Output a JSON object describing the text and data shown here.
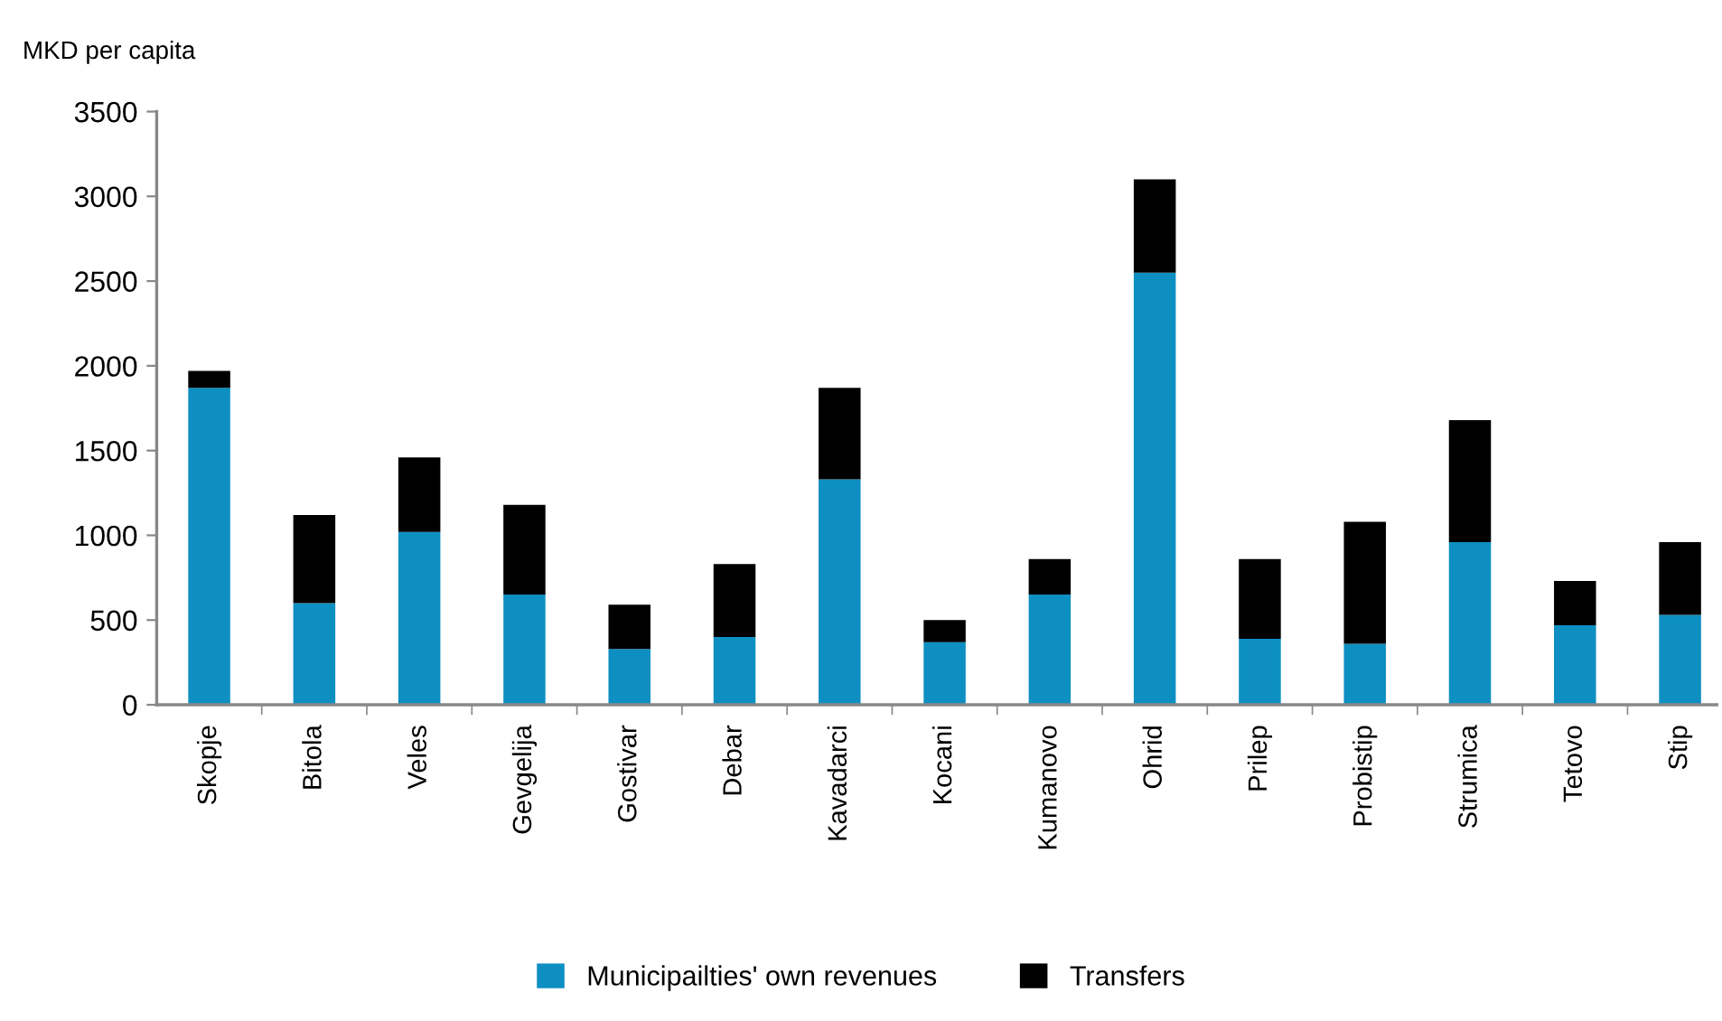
{
  "chart_data": {
    "type": "bar",
    "ylabel": "MKD per capita",
    "categories": [
      "Skopje",
      "Bitola",
      "Veles",
      "Gevgelija",
      "Gostivar",
      "Debar",
      "Kavadarci",
      "Kocani",
      "Kumanovo",
      "Ohrid",
      "Prilep",
      "Probistip",
      "Strumica",
      "Tetovo",
      "Stip"
    ],
    "series": [
      {
        "name": "Municipailties' own revenues",
        "color": "#0e8fc2",
        "values": [
          1870,
          600,
          1020,
          650,
          330,
          400,
          1330,
          370,
          650,
          2550,
          390,
          360,
          960,
          470,
          530
        ]
      },
      {
        "name": "Transfers",
        "color": "#000000",
        "values": [
          100,
          520,
          440,
          530,
          260,
          430,
          540,
          130,
          210,
          550,
          470,
          720,
          720,
          260,
          430
        ]
      }
    ],
    "stacked": true,
    "ylim": [
      0,
      3500
    ],
    "yticks": [
      0,
      500,
      1000,
      1500,
      2000,
      2500,
      3000,
      3500
    ],
    "grid": false,
    "legend": "bottom"
  }
}
